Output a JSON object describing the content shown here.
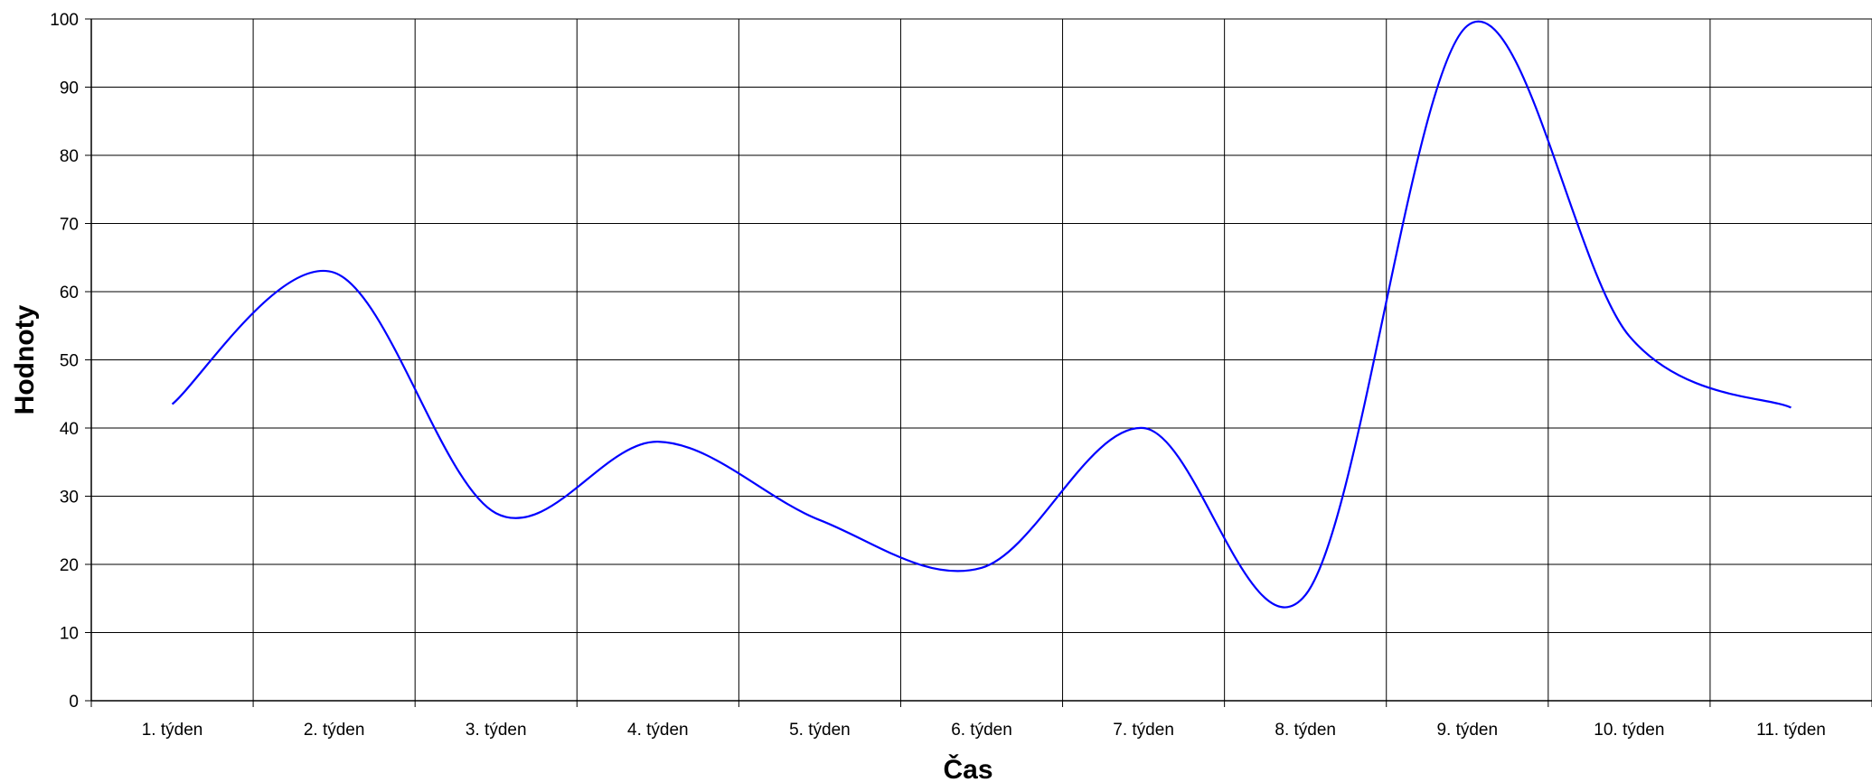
{
  "chart_data": {
    "type": "line",
    "smooth": true,
    "categories": [
      "1. týden",
      "2. týden",
      "3. týden",
      "4. týden",
      "5. týden",
      "6. týden",
      "7. týden",
      "8. týden",
      "9. týden",
      "10. týden",
      "11. týden"
    ],
    "series": [
      {
        "values": [
          43.5,
          62.8,
          27.5,
          38,
          26.5,
          19.5,
          40,
          15.5,
          99,
          53.5,
          43
        ],
        "color": "#0000ff"
      }
    ],
    "xlabel": "Čas",
    "ylabel": "Hodnoty",
    "ylim": [
      0,
      100
    ],
    "yticks": [
      0,
      10,
      20,
      30,
      40,
      50,
      60,
      70,
      80,
      90,
      100
    ],
    "grid": true,
    "legend": "none"
  }
}
